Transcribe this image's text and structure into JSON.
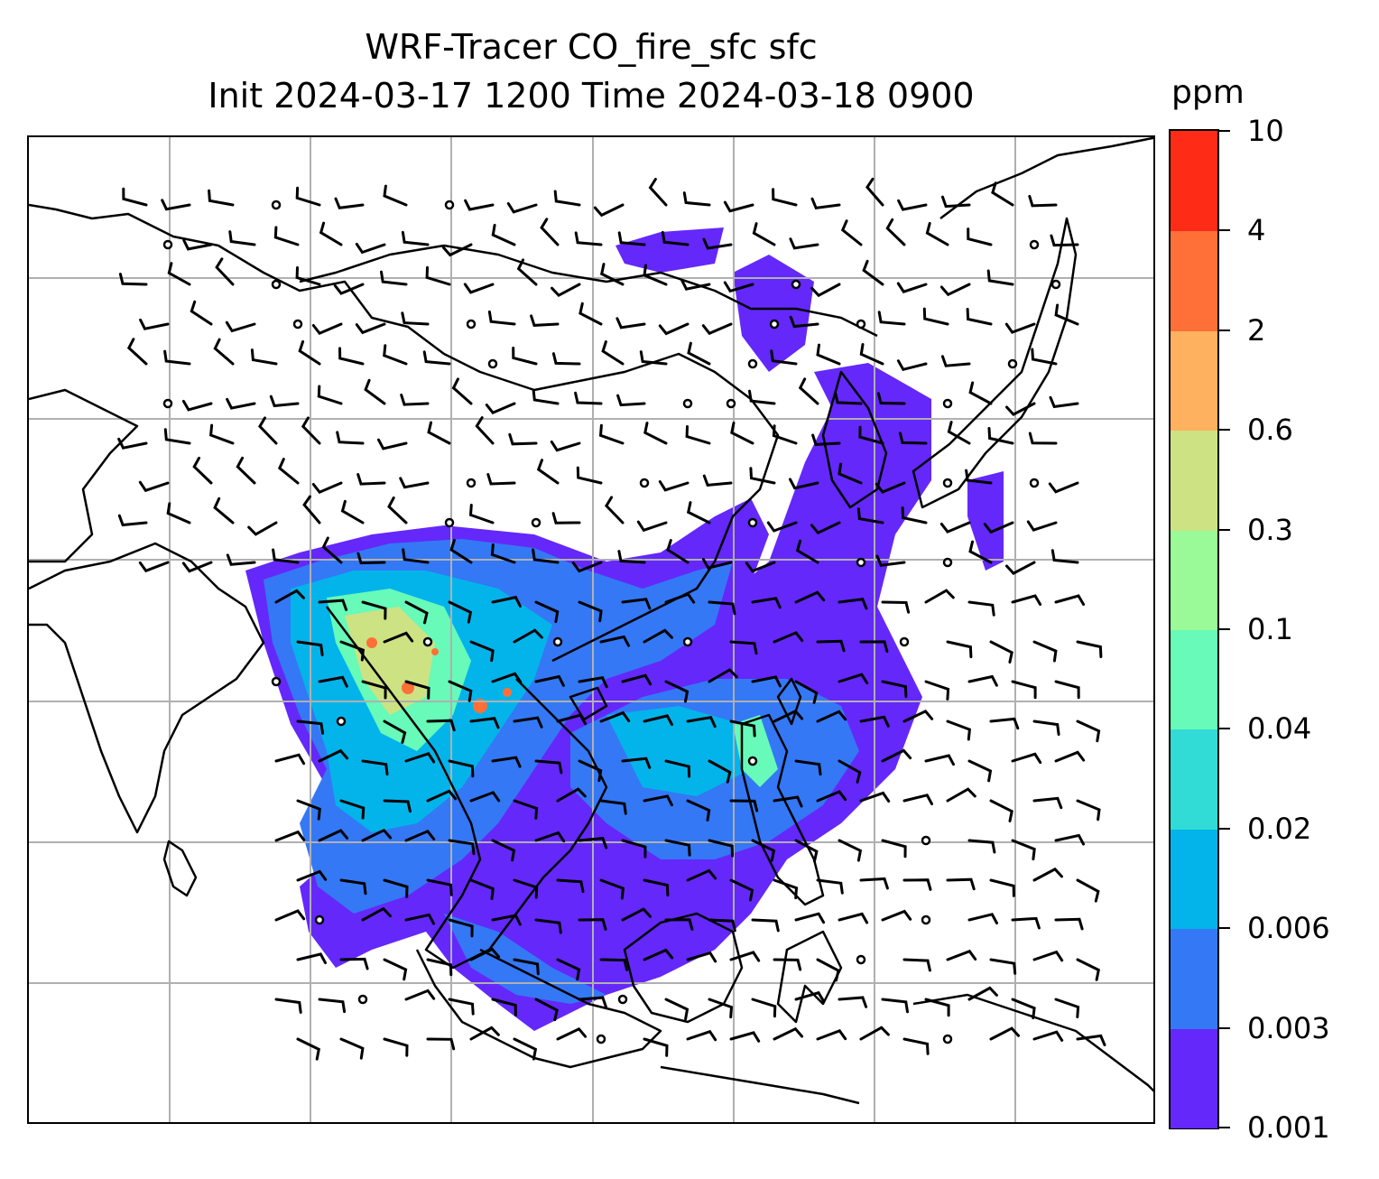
{
  "title": {
    "line1": "WRF-Tracer CO_fire_sfc sfc",
    "line2": "Init 2024-03-17 1200 Time 2024-03-18 0900"
  },
  "colorbar": {
    "unit": "ppm",
    "levels": [
      "0.001",
      "0.003",
      "0.006",
      "0.02",
      "0.04",
      "0.1",
      "0.3",
      "0.6",
      "2",
      "4",
      "10"
    ],
    "colors": [
      "#6428fa",
      "#3478f5",
      "#03b4ea",
      "#30dcd5",
      "#67fab8",
      "#9afa97",
      "#cde283",
      "#feb15f",
      "#fe7037",
      "#fe2b16"
    ]
  },
  "map": {
    "coastline_color": "#000000",
    "grid_color": "#b0b0b0"
  }
}
